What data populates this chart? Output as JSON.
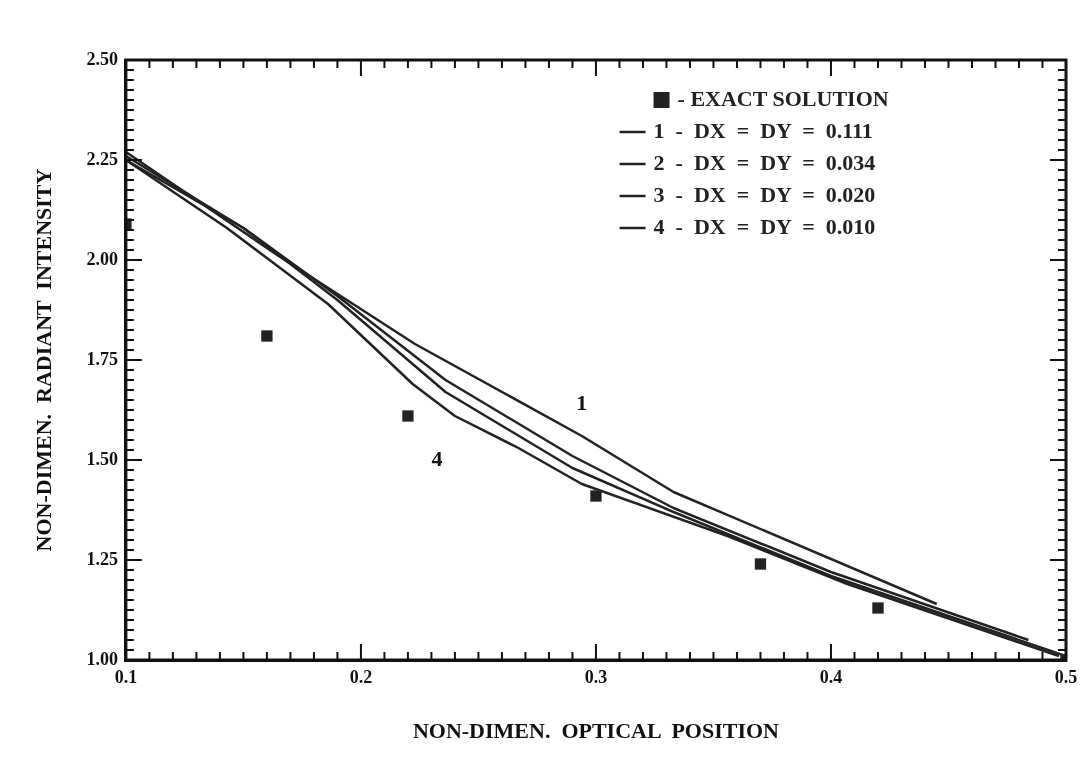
{
  "chart_data": {
    "type": "line",
    "xlabel": "NON-DIMEN.  OPTICAL  POSITION",
    "ylabel": "NON-DIMEN.  RADIANT  INTENSITY",
    "xlim": [
      0.1,
      0.5
    ],
    "ylim": [
      1.0,
      2.5
    ],
    "xticks": [
      0.1,
      {
        "value": 0.11,
        "label": null
      },
      {
        "value": 0.12,
        "label": null
      },
      {
        "value": 0.13,
        "label": null
      },
      {
        "value": 0.14,
        "label": null
      },
      {
        "value": 0.15,
        "label": null
      },
      {
        "value": 0.16,
        "label": null
      },
      {
        "value": 0.17,
        "label": null
      },
      {
        "value": 0.18,
        "label": null
      },
      {
        "value": 0.19,
        "label": null
      },
      0.2,
      {
        "value": 0.21,
        "label": null
      },
      {
        "value": 0.22,
        "label": null
      },
      {
        "value": 0.23,
        "label": null
      },
      {
        "value": 0.24,
        "label": null
      },
      {
        "value": 0.25,
        "label": null
      },
      {
        "value": 0.26,
        "label": null
      },
      {
        "value": 0.27,
        "label": null
      },
      {
        "value": 0.28,
        "label": null
      },
      {
        "value": 0.29,
        "label": null
      },
      0.3,
      {
        "value": 0.31,
        "label": null
      },
      {
        "value": 0.32,
        "label": null
      },
      {
        "value": 0.33,
        "label": null
      },
      {
        "value": 0.34,
        "label": null
      },
      {
        "value": 0.35,
        "label": null
      },
      {
        "value": 0.36,
        "label": null
      },
      {
        "value": 0.37,
        "label": null
      },
      {
        "value": 0.38,
        "label": null
      },
      {
        "value": 0.39,
        "label": null
      },
      0.4,
      {
        "value": 0.41,
        "label": null
      },
      {
        "value": 0.42,
        "label": null
      },
      {
        "value": 0.43,
        "label": null
      },
      {
        "value": 0.44,
        "label": null
      },
      {
        "value": 0.45,
        "label": null
      },
      {
        "value": 0.46,
        "label": null
      },
      {
        "value": 0.47,
        "label": null
      },
      {
        "value": 0.48,
        "label": null
      },
      {
        "value": 0.49,
        "label": null
      },
      0.5
    ],
    "yticks": [
      {
        "value": 1.0,
        "label": "1.00"
      },
      {
        "value": 1.025,
        "label": null
      },
      {
        "value": 1.05,
        "label": null
      },
      {
        "value": 1.075,
        "label": null
      },
      {
        "value": 1.1,
        "label": null
      },
      {
        "value": 1.125,
        "label": null
      },
      {
        "value": 1.15,
        "label": null
      },
      {
        "value": 1.175,
        "label": null
      },
      {
        "value": 1.2,
        "label": null
      },
      {
        "value": 1.225,
        "label": null
      },
      {
        "value": 1.25,
        "label": "1.25"
      },
      {
        "value": 1.275,
        "label": null
      },
      {
        "value": 1.3,
        "label": null
      },
      {
        "value": 1.325,
        "label": null
      },
      {
        "value": 1.35,
        "label": null
      },
      {
        "value": 1.375,
        "label": null
      },
      {
        "value": 1.4,
        "label": null
      },
      {
        "value": 1.425,
        "label": null
      },
      {
        "value": 1.45,
        "label": null
      },
      {
        "value": 1.475,
        "label": null
      },
      {
        "value": 1.5,
        "label": "1.50"
      },
      {
        "value": 1.525,
        "label": null
      },
      {
        "value": 1.55,
        "label": null
      },
      {
        "value": 1.575,
        "label": null
      },
      {
        "value": 1.6,
        "label": null
      },
      {
        "value": 1.625,
        "label": null
      },
      {
        "value": 1.65,
        "label": null
      },
      {
        "value": 1.675,
        "label": null
      },
      {
        "value": 1.7,
        "label": null
      },
      {
        "value": 1.725,
        "label": null
      },
      {
        "value": 1.75,
        "label": "1.75"
      },
      {
        "value": 1.775,
        "label": null
      },
      {
        "value": 1.8,
        "label": null
      },
      {
        "value": 1.825,
        "label": null
      },
      {
        "value": 1.85,
        "label": null
      },
      {
        "value": 1.875,
        "label": null
      },
      {
        "value": 1.9,
        "label": null
      },
      {
        "value": 1.925,
        "label": null
      },
      {
        "value": 1.95,
        "label": null
      },
      {
        "value": 1.975,
        "label": null
      },
      {
        "value": 2.0,
        "label": "2.00"
      },
      {
        "value": 2.025,
        "label": null
      },
      {
        "value": 2.05,
        "label": null
      },
      {
        "value": 2.075,
        "label": null
      },
      {
        "value": 2.1,
        "label": null
      },
      {
        "value": 2.125,
        "label": null
      },
      {
        "value": 2.15,
        "label": null
      },
      {
        "value": 2.175,
        "label": null
      },
      {
        "value": 2.2,
        "label": null
      },
      {
        "value": 2.225,
        "label": null
      },
      {
        "value": 2.25,
        "label": "2.25"
      },
      {
        "value": 2.275,
        "label": null
      },
      {
        "value": 2.3,
        "label": null
      },
      {
        "value": 2.325,
        "label": null
      },
      {
        "value": 2.35,
        "label": null
      },
      {
        "value": 2.375,
        "label": null
      },
      {
        "value": 2.4,
        "label": null
      },
      {
        "value": 2.425,
        "label": null
      },
      {
        "value": 2.45,
        "label": null
      },
      {
        "value": 2.475,
        "label": null
      },
      {
        "value": 2.5,
        "label": "2.50"
      }
    ],
    "legend": "top right",
    "grid": false,
    "series": [
      {
        "name": "- EXACT SOLUTION",
        "type": "scatter",
        "marker": "square",
        "color": "#222222",
        "x": [
          0.1,
          0.16,
          0.22,
          0.3,
          0.37,
          0.42,
          0.5
        ],
        "values": [
          2.09,
          1.81,
          1.61,
          1.41,
          1.24,
          1.13,
          1.0
        ]
      },
      {
        "name": "1  -  DX  =  DY  =  0.111",
        "color": "#222222",
        "x": [
          0.1,
          0.165,
          0.223,
          0.294,
          0.333,
          0.445
        ],
        "values": [
          2.27,
          2.01,
          1.79,
          1.56,
          1.42,
          1.14
        ]
      },
      {
        "name": "2  -  DX  =  DY  =  0.034",
        "color": "#222222",
        "x": [
          0.1,
          0.15,
          0.19,
          0.236,
          0.29,
          0.333,
          0.4,
          0.484
        ],
        "values": [
          2.26,
          2.08,
          1.91,
          1.7,
          1.51,
          1.38,
          1.22,
          1.05
        ]
      },
      {
        "name": "3  -  DX  =  DY  =  0.020",
        "color": "#222222",
        "x": [
          0.1,
          0.15,
          0.19,
          0.236,
          0.29,
          0.333,
          0.4,
          0.5
        ],
        "values": [
          2.25,
          2.08,
          1.9,
          1.67,
          1.48,
          1.37,
          1.21,
          1.01
        ]
      },
      {
        "name": "4  -  DX  =  DY  =  0.010",
        "color": "#222222",
        "x": [
          0.1,
          0.143,
          0.186,
          0.222,
          0.24,
          0.267,
          0.294,
          0.356,
          0.407,
          0.497
        ],
        "values": [
          2.25,
          2.08,
          1.89,
          1.69,
          1.61,
          1.53,
          1.44,
          1.31,
          1.19,
          1.01
        ]
      }
    ],
    "annotations": [
      {
        "text": "1",
        "x": 0.294,
        "y": 1.56
      },
      {
        "text": "4",
        "x": 0.24,
        "y": 1.61
      }
    ]
  }
}
